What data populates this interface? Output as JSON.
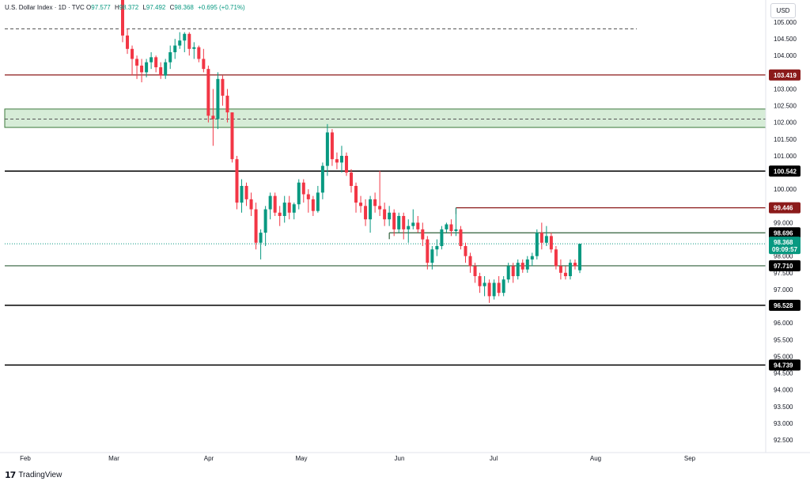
{
  "legend": {
    "title": "U.S. Dollar Index · 1D · TVC",
    "open_label": "O",
    "open": "97.577",
    "high_label": "H",
    "high": "98.372",
    "low_label": "L",
    "low": "97.492",
    "close_label": "C",
    "close": "98.368",
    "change": "+0.695 (+0.71%)"
  },
  "currency": "USD",
  "brand": {
    "name": "TradingView"
  },
  "colors": {
    "up": "#089981",
    "down": "#f23645",
    "zone": "#c8e6c9",
    "zone_border": "#3d7a3d",
    "dark_red": "#8b1a1a",
    "black": "#000000",
    "teal": "#089981"
  },
  "chart_data": {
    "type": "candlestick",
    "symbol": "U.S. Dollar Index",
    "timeframe": "1D",
    "y_ticks": [
      "105.000",
      "104.500",
      "104.000",
      "103.500",
      "103.000",
      "102.500",
      "102.000",
      "101.500",
      "101.000",
      "100.500",
      "100.000",
      "99.500",
      "99.000",
      "98.500",
      "98.000",
      "97.500",
      "97.000",
      "96.500",
      "96.000",
      "95.500",
      "95.000",
      "94.500",
      "94.000",
      "93.500",
      "93.000",
      "92.500"
    ],
    "ylim": [
      92.3,
      105.5
    ],
    "x_ticks": [
      "Feb",
      "Mar",
      "Apr",
      "May",
      "Jun",
      "Jul",
      "Aug",
      "Sep"
    ],
    "candles": [
      {
        "o": 105.9,
        "h": 106.1,
        "l": 104.4,
        "c": 104.6
      },
      {
        "o": 104.6,
        "h": 104.8,
        "l": 104.05,
        "c": 104.2
      },
      {
        "o": 104.2,
        "h": 104.3,
        "l": 103.4,
        "c": 103.9
      },
      {
        "o": 103.9,
        "h": 104.0,
        "l": 103.3,
        "c": 103.7
      },
      {
        "o": 103.7,
        "h": 103.9,
        "l": 103.2,
        "c": 103.5
      },
      {
        "o": 103.5,
        "h": 103.9,
        "l": 103.35,
        "c": 103.8
      },
      {
        "o": 103.8,
        "h": 104.1,
        "l": 103.6,
        "c": 103.95
      },
      {
        "o": 103.95,
        "h": 104.0,
        "l": 103.5,
        "c": 103.65
      },
      {
        "o": 103.65,
        "h": 103.8,
        "l": 103.3,
        "c": 103.4
      },
      {
        "o": 103.4,
        "h": 103.9,
        "l": 103.3,
        "c": 103.8
      },
      {
        "o": 103.8,
        "h": 104.3,
        "l": 103.6,
        "c": 104.1
      },
      {
        "o": 104.1,
        "h": 104.5,
        "l": 103.9,
        "c": 104.3
      },
      {
        "o": 104.3,
        "h": 104.7,
        "l": 104.2,
        "c": 104.45
      },
      {
        "o": 104.45,
        "h": 104.7,
        "l": 104.1,
        "c": 104.65
      },
      {
        "o": 104.65,
        "h": 104.7,
        "l": 104.0,
        "c": 104.2
      },
      {
        "o": 104.2,
        "h": 104.4,
        "l": 103.9,
        "c": 104.25
      },
      {
        "o": 104.25,
        "h": 104.3,
        "l": 103.8,
        "c": 103.9
      },
      {
        "o": 103.9,
        "h": 104.2,
        "l": 103.5,
        "c": 103.6
      },
      {
        "o": 103.6,
        "h": 103.7,
        "l": 102.0,
        "c": 102.2
      },
      {
        "o": 102.2,
        "h": 103.0,
        "l": 101.3,
        "c": 102.1
      },
      {
        "o": 102.1,
        "h": 103.5,
        "l": 101.8,
        "c": 103.3
      },
      {
        "o": 103.3,
        "h": 103.4,
        "l": 102.5,
        "c": 102.8
      },
      {
        "o": 102.8,
        "h": 103.0,
        "l": 102.0,
        "c": 102.3
      },
      {
        "o": 102.3,
        "h": 102.3,
        "l": 100.8,
        "c": 100.9
      },
      {
        "o": 100.9,
        "h": 101.0,
        "l": 99.4,
        "c": 99.6
      },
      {
        "o": 99.6,
        "h": 100.3,
        "l": 99.3,
        "c": 100.1
      },
      {
        "o": 100.1,
        "h": 100.2,
        "l": 99.5,
        "c": 99.7
      },
      {
        "o": 99.7,
        "h": 99.9,
        "l": 99.2,
        "c": 99.4
      },
      {
        "o": 99.4,
        "h": 99.6,
        "l": 98.2,
        "c": 98.4
      },
      {
        "o": 98.4,
        "h": 98.8,
        "l": 97.9,
        "c": 98.7
      },
      {
        "o": 98.7,
        "h": 99.5,
        "l": 98.3,
        "c": 99.4
      },
      {
        "o": 99.4,
        "h": 99.9,
        "l": 99.1,
        "c": 99.8
      },
      {
        "o": 99.8,
        "h": 99.9,
        "l": 99.2,
        "c": 99.3
      },
      {
        "o": 99.3,
        "h": 99.5,
        "l": 98.9,
        "c": 99.2
      },
      {
        "o": 99.2,
        "h": 99.8,
        "l": 99.0,
        "c": 99.6
      },
      {
        "o": 99.6,
        "h": 99.8,
        "l": 99.1,
        "c": 99.3
      },
      {
        "o": 99.3,
        "h": 99.6,
        "l": 99.1,
        "c": 99.55
      },
      {
        "o": 99.55,
        "h": 100.3,
        "l": 99.4,
        "c": 100.2
      },
      {
        "o": 100.2,
        "h": 100.3,
        "l": 99.6,
        "c": 99.85
      },
      {
        "o": 99.85,
        "h": 100.0,
        "l": 99.3,
        "c": 99.7
      },
      {
        "o": 99.7,
        "h": 99.8,
        "l": 99.2,
        "c": 99.35
      },
      {
        "o": 99.35,
        "h": 100.1,
        "l": 99.3,
        "c": 99.9
      },
      {
        "o": 99.9,
        "h": 100.8,
        "l": 99.7,
        "c": 100.7
      },
      {
        "o": 100.7,
        "h": 101.95,
        "l": 100.4,
        "c": 101.7
      },
      {
        "o": 101.7,
        "h": 101.8,
        "l": 100.7,
        "c": 100.9
      },
      {
        "o": 100.9,
        "h": 101.1,
        "l": 100.6,
        "c": 100.8
      },
      {
        "o": 100.8,
        "h": 101.3,
        "l": 100.5,
        "c": 101.0
      },
      {
        "o": 101.0,
        "h": 101.1,
        "l": 100.4,
        "c": 100.5
      },
      {
        "o": 100.5,
        "h": 100.6,
        "l": 99.9,
        "c": 100.1
      },
      {
        "o": 100.1,
        "h": 100.2,
        "l": 99.3,
        "c": 99.6
      },
      {
        "o": 99.6,
        "h": 99.8,
        "l": 99.3,
        "c": 99.5
      },
      {
        "o": 99.5,
        "h": 99.7,
        "l": 98.9,
        "c": 99.1
      },
      {
        "o": 99.1,
        "h": 99.8,
        "l": 98.7,
        "c": 99.7
      },
      {
        "o": 99.7,
        "h": 99.9,
        "l": 99.3,
        "c": 99.5
      },
      {
        "o": 99.5,
        "h": 100.55,
        "l": 99.2,
        "c": 99.4
      },
      {
        "o": 99.4,
        "h": 99.6,
        "l": 98.9,
        "c": 99.1
      },
      {
        "o": 99.1,
        "h": 99.5,
        "l": 98.9,
        "c": 99.3
      },
      {
        "o": 99.3,
        "h": 99.4,
        "l": 98.6,
        "c": 98.8
      },
      {
        "o": 98.8,
        "h": 99.3,
        "l": 98.7,
        "c": 99.2
      },
      {
        "o": 99.2,
        "h": 99.3,
        "l": 98.5,
        "c": 98.8
      },
      {
        "o": 98.8,
        "h": 99.1,
        "l": 98.4,
        "c": 98.9
      },
      {
        "o": 98.9,
        "h": 99.4,
        "l": 98.8,
        "c": 99.0
      },
      {
        "o": 99.0,
        "h": 99.2,
        "l": 98.7,
        "c": 98.8
      },
      {
        "o": 98.8,
        "h": 99.0,
        "l": 98.3,
        "c": 98.5
      },
      {
        "o": 98.5,
        "h": 98.6,
        "l": 97.6,
        "c": 97.8
      },
      {
        "o": 97.8,
        "h": 98.3,
        "l": 97.6,
        "c": 98.2
      },
      {
        "o": 98.2,
        "h": 98.5,
        "l": 98.0,
        "c": 98.3
      },
      {
        "o": 98.3,
        "h": 98.9,
        "l": 98.2,
        "c": 98.8
      },
      {
        "o": 98.8,
        "h": 99.0,
        "l": 98.7,
        "c": 98.95
      },
      {
        "o": 98.95,
        "h": 99.1,
        "l": 98.6,
        "c": 98.75
      },
      {
        "o": 98.75,
        "h": 99.45,
        "l": 98.6,
        "c": 98.8
      },
      {
        "o": 98.8,
        "h": 98.9,
        "l": 98.2,
        "c": 98.3
      },
      {
        "o": 98.3,
        "h": 98.4,
        "l": 97.8,
        "c": 98.0
      },
      {
        "o": 98.0,
        "h": 98.1,
        "l": 97.5,
        "c": 97.7
      },
      {
        "o": 97.7,
        "h": 97.8,
        "l": 97.2,
        "c": 97.4
      },
      {
        "o": 97.4,
        "h": 97.5,
        "l": 96.9,
        "c": 97.1
      },
      {
        "o": 97.1,
        "h": 97.4,
        "l": 96.8,
        "c": 97.2
      },
      {
        "o": 97.2,
        "h": 97.3,
        "l": 96.6,
        "c": 96.8
      },
      {
        "o": 96.8,
        "h": 97.3,
        "l": 96.7,
        "c": 97.2
      },
      {
        "o": 97.2,
        "h": 97.4,
        "l": 96.8,
        "c": 96.9
      },
      {
        "o": 96.9,
        "h": 97.4,
        "l": 96.8,
        "c": 97.3
      },
      {
        "o": 97.3,
        "h": 97.8,
        "l": 97.2,
        "c": 97.7
      },
      {
        "o": 97.7,
        "h": 97.8,
        "l": 97.2,
        "c": 97.4
      },
      {
        "o": 97.4,
        "h": 97.9,
        "l": 97.3,
        "c": 97.8
      },
      {
        "o": 97.8,
        "h": 97.9,
        "l": 97.5,
        "c": 97.6
      },
      {
        "o": 97.6,
        "h": 98.0,
        "l": 97.5,
        "c": 97.9
      },
      {
        "o": 97.9,
        "h": 98.1,
        "l": 97.7,
        "c": 98.0
      },
      {
        "o": 98.0,
        "h": 98.8,
        "l": 97.9,
        "c": 98.7
      },
      {
        "o": 98.7,
        "h": 99.0,
        "l": 98.2,
        "c": 98.4
      },
      {
        "o": 98.4,
        "h": 98.9,
        "l": 98.3,
        "c": 98.6
      },
      {
        "o": 98.6,
        "h": 98.7,
        "l": 98.1,
        "c": 98.2
      },
      {
        "o": 98.2,
        "h": 98.3,
        "l": 97.6,
        "c": 97.7
      },
      {
        "o": 97.7,
        "h": 97.9,
        "l": 97.3,
        "c": 97.5
      },
      {
        "o": 97.5,
        "h": 97.7,
        "l": 97.3,
        "c": 97.4
      },
      {
        "o": 97.4,
        "h": 97.9,
        "l": 97.3,
        "c": 97.8
      },
      {
        "o": 97.8,
        "h": 97.9,
        "l": 97.6,
        "c": 97.7
      },
      {
        "o": 97.577,
        "h": 98.372,
        "l": 97.492,
        "c": 98.368
      }
    ],
    "levels": [
      {
        "value": 103.419,
        "label": "103.419",
        "style": "solid",
        "color": "#8b1a1a",
        "tag_bg": "#8b1a1a",
        "tag_fg": "#ffffff"
      },
      {
        "value": 100.542,
        "label": "100.542",
        "style": "solid",
        "color": "#000000",
        "tag_bg": "#000000",
        "tag_fg": "#ffffff"
      },
      {
        "value": 97.71,
        "label": "97.710",
        "style": "solid",
        "color": "#2f5f3a",
        "tag_bg": "#000000",
        "tag_fg": "#ffffff"
      },
      {
        "value": 96.528,
        "label": "96.528",
        "style": "solid",
        "color": "#000000",
        "tag_bg": "#000000",
        "tag_fg": "#ffffff"
      },
      {
        "value": 94.739,
        "label": "94.739",
        "style": "solid",
        "color": "#000000",
        "tag_bg": "#000000",
        "tag_fg": "#ffffff"
      }
    ],
    "partial_levels": [
      {
        "value": 99.446,
        "label": "99.446",
        "from_bar": 70,
        "color": "#8b1a1a",
        "tag_bg": "#8b1a1a",
        "tag_fg": "#ffffff"
      },
      {
        "value": 98.696,
        "label": "98.696",
        "from_bar": 56,
        "color": "#2f5f3a",
        "tag_bg": "#000000",
        "tag_fg": "#ffffff"
      }
    ],
    "dashed_lines": [
      {
        "value": 104.8,
        "to_date_label": "Aug",
        "color": "#555555"
      },
      {
        "value": 102.1,
        "color": "#555555"
      }
    ],
    "zone": {
      "from": 101.85,
      "to": 102.4,
      "color": "#c8e6c9",
      "border": "#3d7a3d"
    },
    "last_price": {
      "value": 98.368,
      "label": "98.368",
      "countdown": "09:09:57",
      "color": "#089981"
    }
  }
}
